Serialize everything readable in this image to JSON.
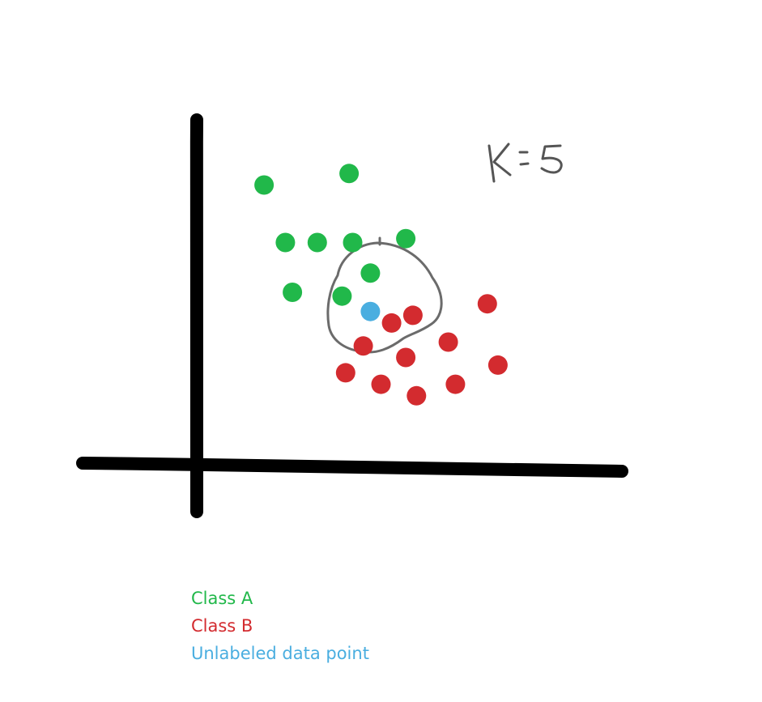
{
  "annotation": {
    "text": "K=5"
  },
  "colors": {
    "class_a": "#21b84a",
    "class_b": "#d32b2f",
    "unlabeled": "#4aaee0",
    "axes": "#000000",
    "neighborhood_outline": "#6b6b6b",
    "annotation": "#555555"
  },
  "chart_data": {
    "type": "scatter",
    "series": [
      {
        "name": "Class A",
        "color": "#21b84a",
        "points": [
          [
            1.9,
            7.3
          ],
          [
            4.3,
            7.6
          ],
          [
            2.5,
            5.8
          ],
          [
            3.4,
            5.8
          ],
          [
            4.4,
            5.8
          ],
          [
            5.9,
            5.9
          ],
          [
            2.7,
            4.5
          ],
          [
            4.1,
            4.4
          ],
          [
            4.9,
            5.0
          ]
        ]
      },
      {
        "name": "Class B",
        "color": "#d32b2f",
        "points": [
          [
            5.5,
            3.7
          ],
          [
            6.1,
            3.9
          ],
          [
            4.7,
            3.1
          ],
          [
            5.9,
            2.8
          ],
          [
            7.1,
            3.2
          ],
          [
            8.2,
            4.2
          ],
          [
            4.2,
            2.4
          ],
          [
            5.2,
            2.1
          ],
          [
            6.2,
            1.8
          ],
          [
            7.3,
            2.1
          ],
          [
            8.5,
            2.6
          ]
        ]
      },
      {
        "name": "Unlabeled data point",
        "color": "#4aaee0",
        "points": [
          [
            4.9,
            4.0
          ]
        ]
      }
    ],
    "xlim": [
      0,
      12
    ],
    "ylim": [
      0,
      9
    ],
    "grid": false,
    "legend_position": "bottom-left"
  }
}
